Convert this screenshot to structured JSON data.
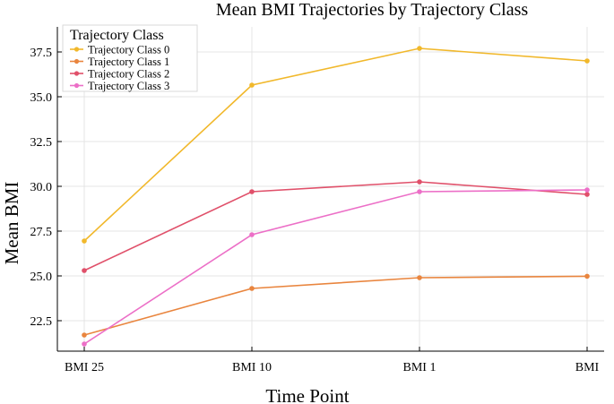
{
  "chart_data": {
    "type": "line",
    "title": "Mean BMI Trajectories by Trajectory Class",
    "xlabel": "Time Point",
    "ylabel": "Mean BMI",
    "categories": [
      "BMI 25",
      "BMI 10",
      "BMI 1",
      "BMI"
    ],
    "ylim": [
      20.8,
      38.9
    ],
    "yticks": [
      22.5,
      25.0,
      27.5,
      30.0,
      32.5,
      35.0,
      37.5
    ],
    "ytick_labels": [
      "22.5",
      "25.0",
      "27.5",
      "30.0",
      "32.5",
      "35.0",
      "37.5"
    ],
    "grid": true,
    "legend": {
      "title": "Trajectory Class",
      "placement": "top-left"
    },
    "series": [
      {
        "name": "Trajectory Class 0",
        "color": "#f1b82b",
        "values": [
          26.95,
          35.65,
          37.7,
          37.0
        ]
      },
      {
        "name": "Trajectory Class 1",
        "color": "#e9853e",
        "values": [
          21.7,
          24.3,
          24.9,
          24.98
        ]
      },
      {
        "name": "Trajectory Class 2",
        "color": "#e0506a",
        "values": [
          25.3,
          29.7,
          30.25,
          29.55
        ]
      },
      {
        "name": "Trajectory Class 3",
        "color": "#ec6fc7",
        "values": [
          21.2,
          27.3,
          29.7,
          29.8
        ]
      }
    ]
  }
}
